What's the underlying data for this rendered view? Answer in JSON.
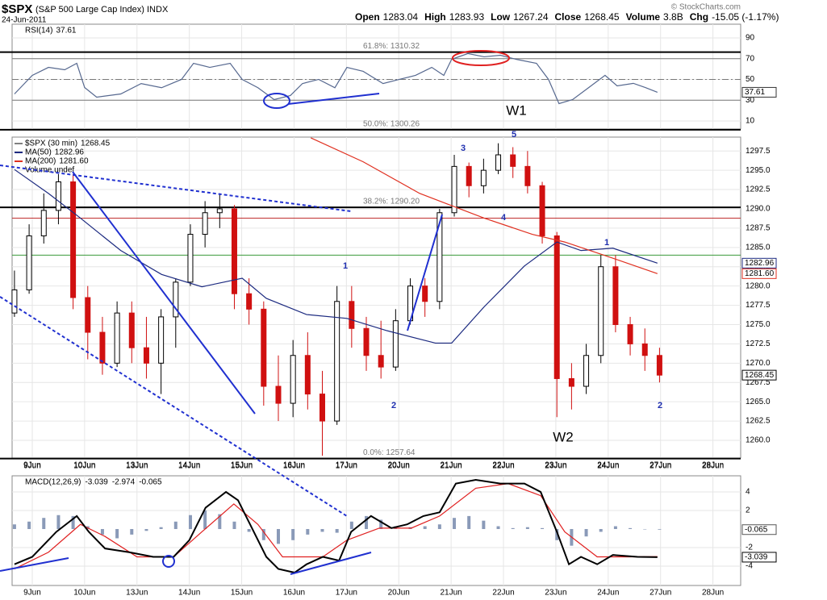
{
  "chart_data": [
    {
      "type": "line",
      "title": "RSI(14)",
      "value_label": "37.61",
      "color": "#56688f",
      "x": [
        -0.34,
        0,
        0.31,
        0.62,
        0.85,
        1.0,
        1.23,
        1.69,
        2.08,
        2.47,
        2.85,
        3.08,
        3.39,
        3.78,
        4.01,
        4.31,
        4.62,
        4.93,
        5.16,
        5.47,
        5.78,
        6.01,
        6.32,
        6.7,
        7.01,
        7.32,
        7.63,
        7.86,
        8.01,
        8.32,
        8.63,
        8.94,
        9.24,
        9.63,
        9.86,
        10.06,
        10.32,
        10.63,
        10.94,
        11.17,
        11.48,
        11.71,
        11.94
      ],
      "values": [
        36,
        53.9,
        61.6,
        59.3,
        65.5,
        42.2,
        32.9,
        36,
        46,
        42,
        50,
        65.5,
        61.6,
        65.5,
        50,
        42,
        30.6,
        34.5,
        46,
        50,
        42,
        61.6,
        57.8,
        46,
        50,
        53.9,
        61.6,
        53.9,
        69.4,
        74.9,
        71.8,
        73.3,
        69.4,
        65.5,
        50,
        26.7,
        30.6,
        42.2,
        53.9,
        43.8,
        46.2,
        42.2,
        37.61
      ],
      "ylim": [
        2.2,
        103.2
      ],
      "yticks": [
        90,
        70,
        50,
        30,
        10
      ],
      "ref_lines": [
        {
          "value": 70,
          "style": "solid"
        },
        {
          "value": 50,
          "style": "dashdot"
        },
        {
          "value": 30,
          "style": "solid"
        }
      ]
    },
    {
      "type": "candlestick",
      "title": "$SPX",
      "subtitle": "(S&P 500 Large Cap Index) INDX",
      "date": "24-Jun-2011",
      "credit": "© StockCharts.com",
      "header": [
        {
          "label": "Open",
          "value": 1283.04
        },
        {
          "label": "High",
          "value": 1283.93
        },
        {
          "label": "Low",
          "value": 1267.24
        },
        {
          "label": "Close",
          "value": 1268.45
        },
        {
          "label": "Volume",
          "value": "3.8B"
        },
        {
          "label": "Chg",
          "value": "-15.05 (-1.17%)"
        }
      ],
      "name": "$SPX (30 min)",
      "last_label": "1268.45",
      "volume_label": "Volume undef",
      "up_color": "#000000",
      "down_color": "#d01010",
      "x": [
        -0.34,
        -0.06,
        0.22,
        0.5,
        0.78,
        1.06,
        1.34,
        1.62,
        1.9,
        2.18,
        2.46,
        2.74,
        3.02,
        3.3,
        3.58,
        3.86,
        4.14,
        4.42,
        4.7,
        4.98,
        5.26,
        5.54,
        5.82,
        6.1,
        6.38,
        6.66,
        6.94,
        7.22,
        7.5,
        7.78,
        8.06,
        8.34,
        8.62,
        8.9,
        9.18,
        9.46,
        9.74,
        10.02,
        10.3,
        10.58,
        10.86,
        11.14,
        11.42,
        11.7,
        11.98
      ],
      "open": [
        1276.5,
        1279.5,
        1286.5,
        1289.8,
        1293.5,
        1278.5,
        1274,
        1270,
        1276.5,
        1272,
        1270,
        1276,
        1280.5,
        1286.7,
        1289.5,
        1290,
        1279,
        1277,
        1267,
        1264.8,
        1271,
        1266,
        1262.5,
        1278,
        1274.5,
        1271,
        1269.5,
        1275.5,
        1280,
        1278,
        1289.5,
        1295.5,
        1293,
        1295,
        1297,
        1295.5,
        1293,
        1286.5,
        1268,
        1267,
        1271,
        1282.5,
        1275,
        1272.5,
        1271
      ],
      "high": [
        1282,
        1288,
        1292,
        1294.5,
        1294.5,
        1280,
        1276,
        1278,
        1278,
        1276,
        1277,
        1281,
        1288,
        1291,
        1292,
        1290.5,
        1281,
        1278,
        1271,
        1273,
        1274,
        1269,
        1280,
        1280,
        1276,
        1275.5,
        1277,
        1281,
        1281,
        1290,
        1297,
        1296,
        1296.5,
        1298.5,
        1298,
        1297.5,
        1293.5,
        1287,
        1270,
        1272.5,
        1284,
        1284,
        1276,
        1274.5,
        1272
      ],
      "low": [
        1276,
        1279,
        1285.5,
        1288,
        1277,
        1270.5,
        1268.5,
        1269.5,
        1270,
        1268,
        1266,
        1272,
        1280,
        1285,
        1287.5,
        1277,
        1275,
        1264.5,
        1262.5,
        1263,
        1264,
        1258,
        1262,
        1272,
        1269,
        1268,
        1269,
        1275,
        1276,
        1277,
        1289,
        1291.5,
        1292,
        1294.5,
        1294,
        1292,
        1285.5,
        1263,
        1264,
        1266,
        1270,
        1274,
        1271,
        1269,
        1267.5
      ],
      "close": [
        1279.5,
        1286.5,
        1289.8,
        1293.5,
        1278.5,
        1274,
        1270,
        1276.5,
        1272,
        1270,
        1276,
        1280.5,
        1286.7,
        1289.5,
        1290,
        1279,
        1277,
        1267,
        1264.8,
        1271,
        1266,
        1262.5,
        1278,
        1274.5,
        1271,
        1269.5,
        1275.5,
        1280,
        1278,
        1289.5,
        1295.5,
        1293,
        1295,
        1297,
        1295.5,
        1293,
        1286.5,
        1268,
        1267,
        1271,
        1282.5,
        1275,
        1272.5,
        1271,
        1268.45
      ],
      "series": [
        {
          "name": "MA(50)",
          "value_label": "1282.96",
          "color": "#1c2a80",
          "x": [
            -0.34,
            0.31,
            0.92,
            1.69,
            2.47,
            3.24,
            4.01,
            4.47,
            5.24,
            6.01,
            6.78,
            7.7,
            8.01,
            8.63,
            9.4,
            10.02,
            10.48,
            11.09,
            11.94
          ],
          "values": [
            1295.1,
            1292.0,
            1288.8,
            1284.6,
            1281.5,
            1279.9,
            1281.0,
            1278.4,
            1276.3,
            1275.8,
            1274.2,
            1272.6,
            1272.6,
            1277.3,
            1282.6,
            1285.7,
            1284.6,
            1284.9,
            1282.96
          ]
        },
        {
          "name": "MA(200)",
          "value_label": "1281.60",
          "color": "#e03020",
          "x": [
            5.32,
            6.32,
            7.4,
            8.63,
            9.55,
            10.17,
            11.09,
            11.94
          ],
          "values": [
            1299.2,
            1296.1,
            1292.0,
            1288.8,
            1286.7,
            1285.7,
            1283.6,
            1281.6
          ]
        }
      ],
      "fib": [
        {
          "value": 1310.32,
          "label": "61.8%: 1310.32"
        },
        {
          "value": 1300.26,
          "label": "50.0%: 1300.26"
        },
        {
          "value": 1290.2,
          "label": "38.2%: 1290.20"
        },
        {
          "value": 1257.64,
          "label": "0.0%: 1257.64"
        }
      ],
      "hlines": [
        {
          "value": 1288.8,
          "color": "#c03030"
        },
        {
          "value": 1284.0,
          "color": "#3a9a3a"
        }
      ],
      "wave_labels": [
        "1",
        "2",
        "3",
        "4",
        "5",
        "W1",
        "W2",
        "1",
        "2"
      ],
      "ylim": [
        1257.7,
        1299.3
      ],
      "yticks": [
        {
          "value": 1260,
          "label": "1260.0"
        },
        {
          "value": 1262.5,
          "label": "1262.5"
        },
        {
          "value": 1265,
          "label": "1265.0"
        },
        {
          "value": 1267.5,
          "label": "1267.5"
        },
        {
          "value": 1270,
          "label": "1270.0"
        },
        {
          "value": 1272.5,
          "label": "1272.5"
        },
        {
          "value": 1275,
          "label": "1275.0"
        },
        {
          "value": 1277.5,
          "label": "1277.5"
        },
        {
          "value": 1280,
          "label": "1280.0"
        },
        {
          "value": 1282.5,
          "label": "1282.5"
        },
        {
          "value": 1285,
          "label": "1285.0"
        },
        {
          "value": 1287.5,
          "label": "1287.5"
        },
        {
          "value": 1290,
          "label": "1290.0"
        },
        {
          "value": 1292.5,
          "label": "1292.5"
        },
        {
          "value": 1295,
          "label": "1295.0"
        },
        {
          "value": 1297.5,
          "label": "1297.5"
        }
      ],
      "xlim": [
        -0.385,
        13.53
      ],
      "xticks": [
        {
          "value": 0,
          "label": "9Jun"
        },
        {
          "value": 1,
          "label": "10Jun"
        },
        {
          "value": 2,
          "label": "13Jun"
        },
        {
          "value": 3,
          "label": "14Jun"
        },
        {
          "value": 4,
          "label": "15Jun"
        },
        {
          "value": 5,
          "label": "16Jun"
        },
        {
          "value": 6,
          "label": "17Jun"
        },
        {
          "value": 7,
          "label": "20Jun"
        },
        {
          "value": 8,
          "label": "21Jun"
        },
        {
          "value": 9,
          "label": "22Jun"
        },
        {
          "value": 10,
          "label": "23Jun"
        },
        {
          "value": 11,
          "label": "24Jun"
        },
        {
          "value": 12,
          "label": "27Jun"
        },
        {
          "value": 13,
          "label": "28Jun"
        }
      ],
      "grid": true
    },
    {
      "type": "macd",
      "title": "MACD(12,26,9)",
      "macd_label": "-3.039",
      "signal_label": "-2.974",
      "hist_label": "-0.065",
      "macd": {
        "color": "#000000",
        "x": [
          -0.34,
          0,
          0.46,
          0.85,
          1.08,
          1.39,
          1.85,
          2.31,
          2.7,
          3.0,
          3.31,
          3.7,
          3.93,
          4.16,
          4.47,
          4.7,
          5.01,
          5.24,
          5.55,
          5.86,
          6.09,
          6.47,
          6.86,
          7.16,
          7.47,
          7.78,
          8.09,
          8.47,
          8.94,
          9.4,
          9.71,
          10.02,
          10.25,
          10.48,
          10.79,
          11.09,
          11.56,
          11.94
        ],
        "values": [
          -3.8,
          -3.0,
          -0.3,
          1.4,
          -0.3,
          -2.1,
          -2.5,
          -3.0,
          -3.0,
          -1.2,
          2.3,
          4.0,
          3.1,
          0.5,
          -3.0,
          -4.3,
          -4.7,
          -3.8,
          -3.0,
          -3.4,
          -0.3,
          1.4,
          0.1,
          0.5,
          1.4,
          1.8,
          4.9,
          5.3,
          4.9,
          4.9,
          4.0,
          -0.3,
          -3.8,
          -3.0,
          -3.8,
          -2.8,
          -3.0,
          -3.039
        ]
      },
      "signal": {
        "color": "#e02020",
        "x": [
          -0.34,
          0.31,
          0.92,
          1.39,
          2.0,
          2.7,
          3.24,
          3.85,
          4.31,
          4.78,
          5.55,
          6.01,
          6.63,
          7.24,
          7.78,
          8.47,
          9.09,
          9.71,
          10.17,
          10.79,
          11.4,
          11.94
        ],
        "values": [
          -4.3,
          -2.5,
          0.5,
          -0.8,
          -3.0,
          -3.0,
          -0.3,
          2.7,
          0.5,
          -3.0,
          -3.0,
          -1.2,
          0.1,
          0.1,
          1.4,
          4.4,
          4.9,
          3.6,
          -0.3,
          -3.0,
          -3.0,
          -2.974
        ]
      },
      "histogram": {
        "color": "#8a9ab8",
        "x": [
          -0.34,
          -0.06,
          0.22,
          0.5,
          0.78,
          1.06,
          1.34,
          1.62,
          1.9,
          2.18,
          2.46,
          2.74,
          3.02,
          3.3,
          3.58,
          3.86,
          4.14,
          4.42,
          4.7,
          4.98,
          5.26,
          5.54,
          5.82,
          6.1,
          6.38,
          6.66,
          6.94,
          7.22,
          7.5,
          7.78,
          8.06,
          8.34,
          8.62,
          8.9,
          9.18,
          9.46,
          9.74,
          10.02,
          10.3,
          10.58,
          10.86,
          11.14,
          11.42,
          11.7,
          11.98
        ],
        "values": [
          0.5,
          0.8,
          1.2,
          1.5,
          1.4,
          0.3,
          -0.6,
          -1.0,
          -0.6,
          -0.2,
          0.2,
          0.8,
          1.5,
          2.0,
          1.6,
          0.8,
          -0.3,
          -1.2,
          -1.6,
          -1.2,
          -0.6,
          -0.3,
          -0.4,
          0.8,
          1.4,
          1.0,
          0.3,
          0.2,
          0.3,
          0.5,
          1.2,
          1.4,
          0.9,
          0.3,
          0.1,
          0.2,
          0.1,
          -1.2,
          -1.8,
          -0.8,
          -0.3,
          0.3,
          0.1,
          0.0,
          -0.065
        ]
      },
      "ylim": [
        -6.09,
        5.74
      ],
      "yticks": [
        4,
        2,
        -2,
        -4
      ]
    }
  ]
}
